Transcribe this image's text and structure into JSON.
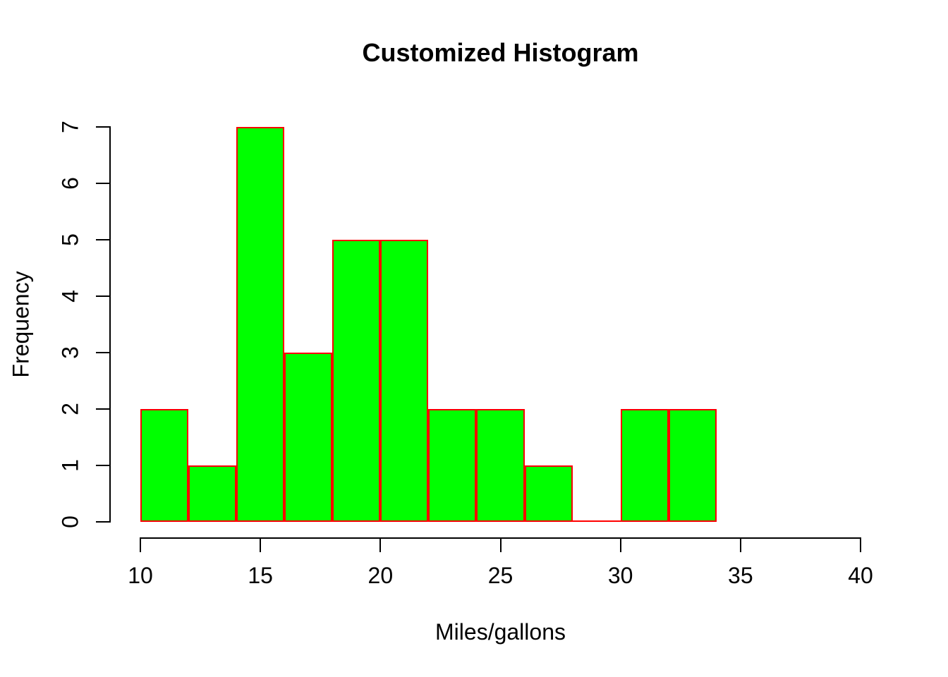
{
  "figure": {
    "title": "Customized Histogram",
    "xlabel": "Miles/gallons",
    "ylabel": "Frequency"
  },
  "colors": {
    "bar_fill": "#00ff00",
    "bar_border": "#ff0000",
    "axis": "#000000",
    "text": "#000000",
    "background": "#ffffff"
  },
  "chart_data": {
    "type": "bar",
    "subtype": "histogram",
    "title": "Customized Histogram",
    "xlabel": "Miles/gallons",
    "ylabel": "Frequency",
    "breaks": [
      10,
      12,
      14,
      16,
      18,
      20,
      22,
      24,
      26,
      28,
      30,
      32,
      34
    ],
    "counts": [
      2,
      1,
      7,
      3,
      5,
      5,
      2,
      2,
      1,
      0,
      2,
      2
    ],
    "x_ticks": [
      10,
      15,
      20,
      25,
      30,
      35,
      40
    ],
    "y_ticks": [
      0,
      1,
      2,
      3,
      4,
      5,
      6,
      7
    ],
    "xlim": [
      10,
      40
    ],
    "ylim": [
      0,
      7
    ],
    "grid": false,
    "legend": false
  }
}
